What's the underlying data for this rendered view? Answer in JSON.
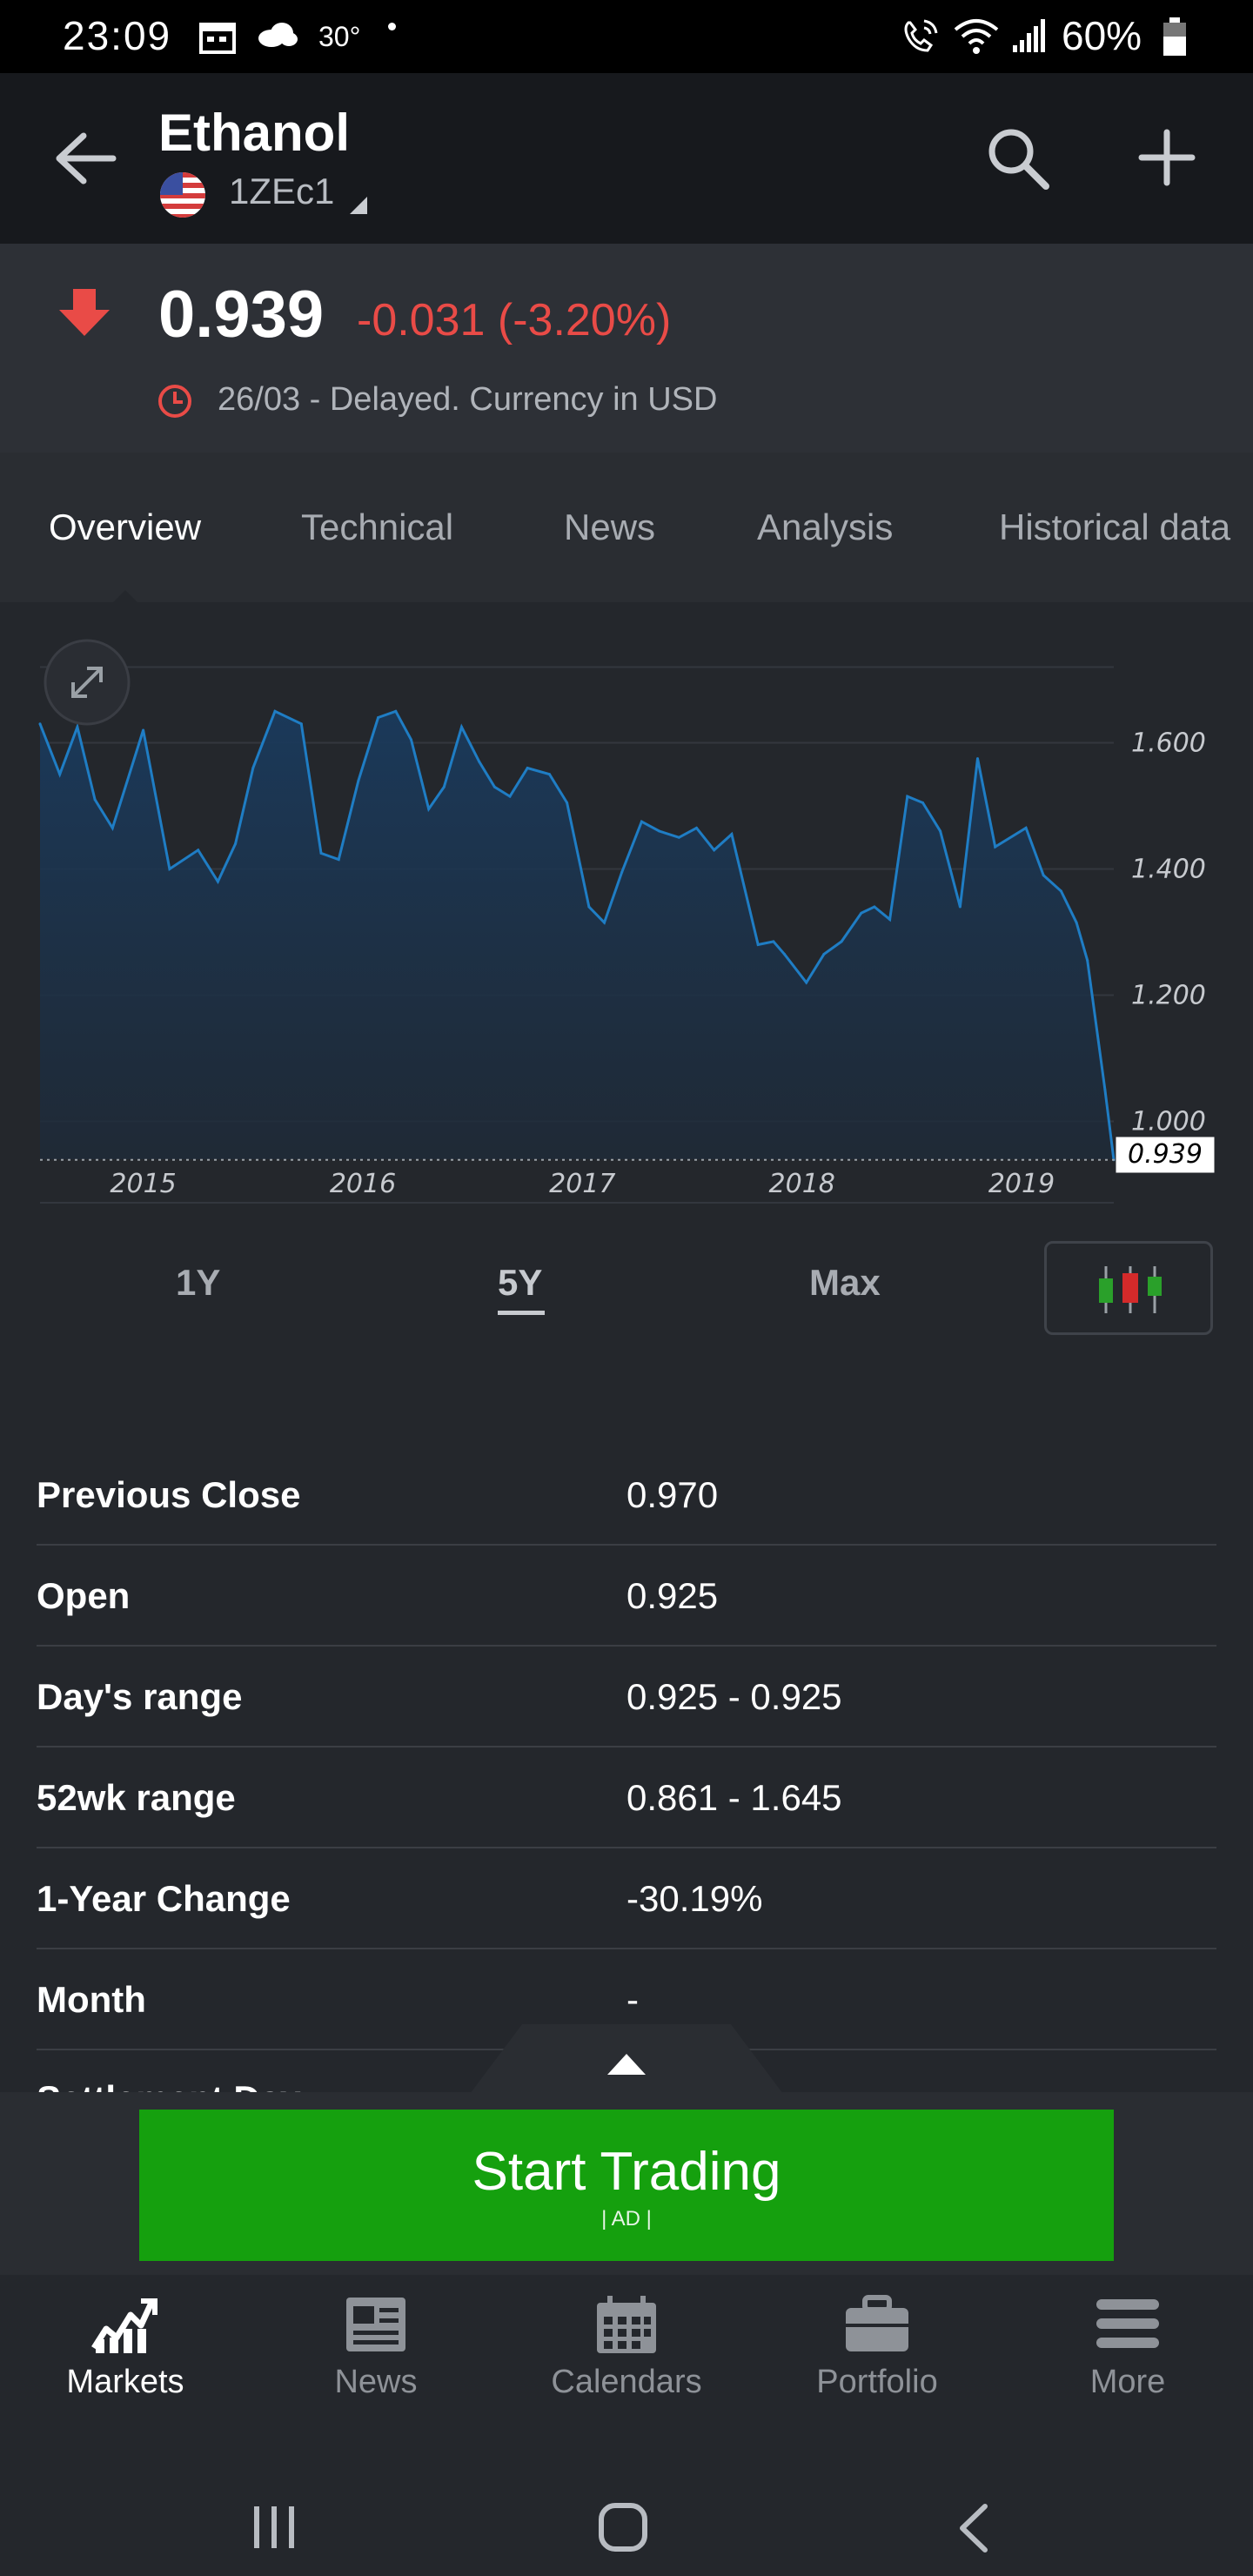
{
  "status_bar": {
    "time": "23:09",
    "temperature": "30°",
    "battery_percent": "60%"
  },
  "header": {
    "title": "Ethanol",
    "symbol": "1ZEc1"
  },
  "quote": {
    "price": "0.939",
    "change": "-0.031 (-3.20%)",
    "delay_note": "26/03 - Delayed. Currency in USD",
    "direction": "down",
    "down_color": "#e94b47"
  },
  "tabs": [
    {
      "label": "Overview",
      "active": true
    },
    {
      "label": "Technical",
      "active": false
    },
    {
      "label": "News",
      "active": false
    },
    {
      "label": "Analysis",
      "active": false
    },
    {
      "label": "Historical data",
      "active": false
    }
  ],
  "chart_data": {
    "type": "area",
    "x_tick_labels": [
      "2015",
      "2016",
      "2017",
      "2018",
      "2019"
    ],
    "y_tick_labels": [
      "1.600",
      "1.400",
      "1.200",
      "1.000"
    ],
    "ylim": [
      0.94,
      1.74
    ],
    "current_value_label": "0.939",
    "grid": true,
    "line_color": "#1f7dc4",
    "x": [
      2014.53,
      2014.62,
      2014.7,
      2014.78,
      2014.86,
      2015.0,
      2015.12,
      2015.25,
      2015.34,
      2015.42,
      2015.5,
      2015.6,
      2015.72,
      2015.81,
      2015.89,
      2015.98,
      2016.07,
      2016.15,
      2016.22,
      2016.3,
      2016.37,
      2016.45,
      2016.53,
      2016.6,
      2016.67,
      2016.75,
      2016.85,
      2016.93,
      2017.03,
      2017.1,
      2017.18,
      2017.27,
      2017.35,
      2017.44,
      2017.52,
      2017.6,
      2017.68,
      2017.8,
      2017.87,
      2017.92,
      2018.02,
      2018.1,
      2018.18,
      2018.27,
      2018.33,
      2018.4,
      2018.48,
      2018.55,
      2018.63,
      2018.72,
      2018.8,
      2018.88,
      2019.02,
      2019.1,
      2019.18,
      2019.25,
      2019.3,
      2019.38,
      2019.42
    ],
    "values": [
      1.63,
      1.55,
      1.625,
      1.51,
      1.465,
      1.62,
      1.4,
      1.43,
      1.38,
      1.44,
      1.56,
      1.65,
      1.63,
      1.425,
      1.415,
      1.54,
      1.64,
      1.65,
      1.605,
      1.495,
      1.53,
      1.625,
      1.57,
      1.53,
      1.515,
      1.56,
      1.55,
      1.505,
      1.34,
      1.315,
      1.395,
      1.475,
      1.46,
      1.45,
      1.465,
      1.43,
      1.455,
      1.28,
      1.285,
      1.265,
      1.22,
      1.265,
      1.285,
      1.33,
      1.34,
      1.32,
      1.515,
      1.505,
      1.46,
      1.34,
      1.575,
      1.435,
      1.465,
      1.39,
      1.365,
      1.315,
      1.255,
      1.05,
      0.939
    ]
  },
  "range_buttons": [
    {
      "label": "1Y",
      "active": false
    },
    {
      "label": "5Y",
      "active": true
    },
    {
      "label": "Max",
      "active": false
    }
  ],
  "stats": [
    {
      "label": "Previous Close",
      "value": "0.970"
    },
    {
      "label": "Open",
      "value": "0.925"
    },
    {
      "label": "Day's range",
      "value": "0.925 - 0.925"
    },
    {
      "label": "52wk range",
      "value": "0.861 - 1.645"
    },
    {
      "label": "1-Year Change",
      "value": "-30.19%"
    },
    {
      "label": "Month",
      "value": "-"
    }
  ],
  "partial_row_label": "Settlement Day",
  "trade_button": {
    "label": "Start Trading",
    "ad_label": "| AD |",
    "color": "#15a00e"
  },
  "bottom_nav": [
    {
      "label": "Markets",
      "icon": "markets-chart-icon",
      "active": true
    },
    {
      "label": "News",
      "icon": "newspaper-icon",
      "active": false
    },
    {
      "label": "Calendars",
      "icon": "calendar-icon",
      "active": false
    },
    {
      "label": "Portfolio",
      "icon": "briefcase-icon",
      "active": false
    },
    {
      "label": "More",
      "icon": "hamburger-menu-icon",
      "active": false
    }
  ]
}
